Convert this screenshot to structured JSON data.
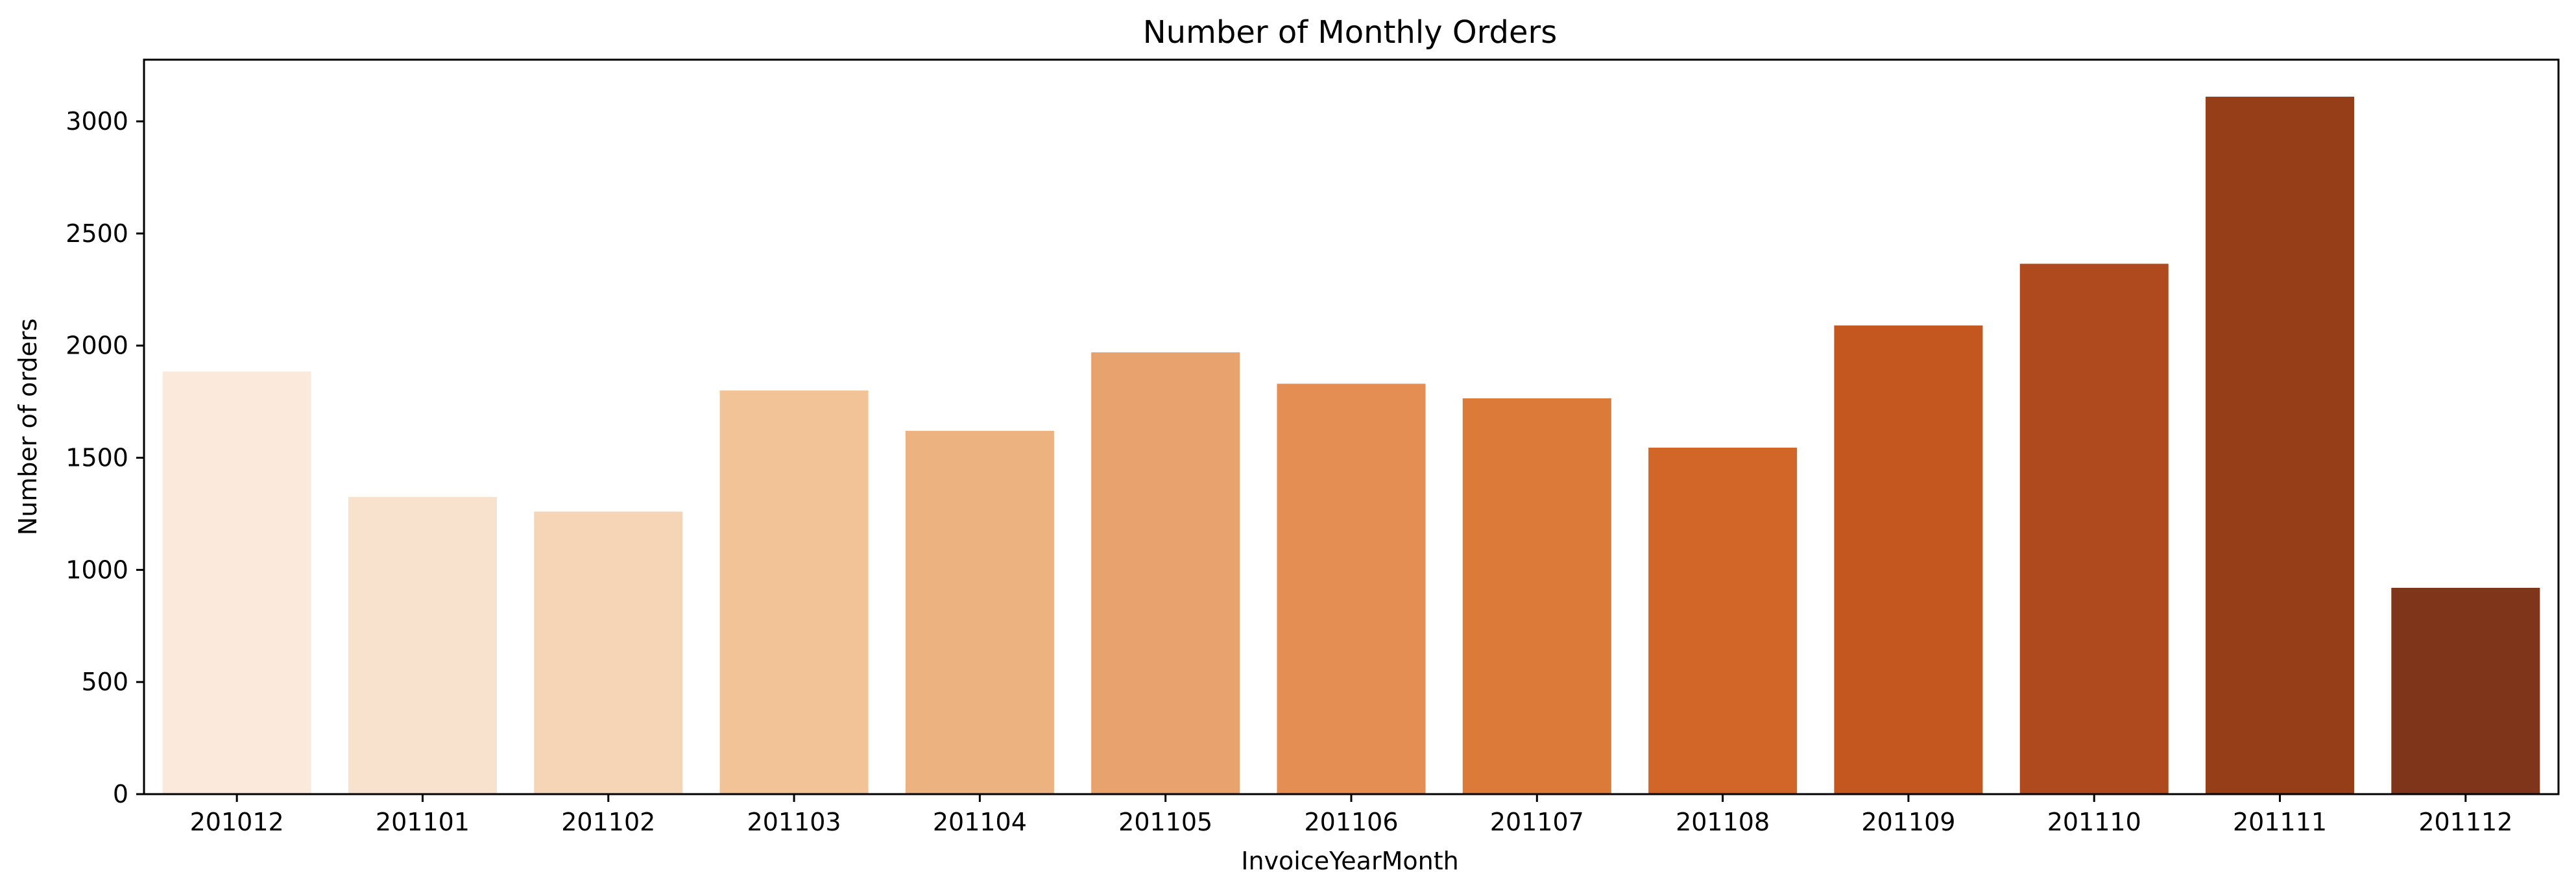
{
  "chart_data": {
    "type": "bar",
    "title": "Number of Monthly Orders",
    "xlabel": "InvoiceYearMonth",
    "ylabel": "Number of orders",
    "categories": [
      "201012",
      "201101",
      "201102",
      "201103",
      "201104",
      "201105",
      "201106",
      "201107",
      "201108",
      "201109",
      "201110",
      "201111",
      "201112"
    ],
    "values": [
      1885,
      1325,
      1260,
      1800,
      1620,
      1970,
      1830,
      1765,
      1545,
      2090,
      2365,
      3110,
      920
    ],
    "yticks": [
      0,
      500,
      1000,
      1500,
      2000,
      2500,
      3000
    ],
    "ylim": [
      0,
      3275
    ],
    "grid": false,
    "colors": [
      "#fbeadb",
      "#f9e2cd",
      "#f5d5b5",
      "#f1c397",
      "#ecb280",
      "#e8a26d",
      "#e48e54",
      "#dc7a3a",
      "#d26629",
      "#c4571f",
      "#ae4a1d",
      "#953e18",
      "#7f3519"
    ]
  }
}
